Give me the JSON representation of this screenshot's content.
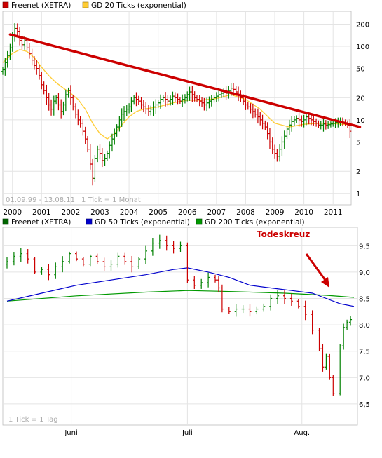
{
  "chart_data": [
    {
      "type": "ohlc",
      "scale": "log",
      "ylim": [
        0.7,
        300
      ],
      "yticks": [
        1,
        2,
        5,
        10,
        20,
        50,
        100,
        200
      ],
      "ytick_labels": [
        "1",
        "2",
        "5",
        "10",
        "20",
        "50",
        "100",
        "200"
      ],
      "xlim": [
        1999.67,
        2011.62
      ],
      "xticks": [
        2000,
        2001,
        2002,
        2003,
        2004,
        2005,
        2006,
        2007,
        2008,
        2009,
        2010,
        2011
      ],
      "xtick_labels": [
        "2000",
        "2001",
        "2002",
        "2003",
        "2004",
        "2005",
        "2006",
        "2007",
        "2008",
        "2009",
        "2010",
        "2011"
      ],
      "legend": [
        {
          "label": "Freenet (XETRA)",
          "color": "#cc0000"
        },
        {
          "label": "GD 20 Ticks (exponential)",
          "color": "#ffcc33"
        }
      ],
      "footer_left": "01.09.99 - 13.08.11",
      "footer_right": "1 Tick = 1 Monat",
      "price_points": [
        [
          1999.67,
          48
        ],
        [
          1999.75,
          60
        ],
        [
          1999.83,
          75
        ],
        [
          1999.92,
          95
        ],
        [
          2000.0,
          140
        ],
        [
          2000.08,
          175
        ],
        [
          2000.17,
          160
        ],
        [
          2000.25,
          120
        ],
        [
          2000.33,
          105
        ],
        [
          2000.42,
          120
        ],
        [
          2000.5,
          95
        ],
        [
          2000.58,
          80
        ],
        [
          2000.67,
          65
        ],
        [
          2000.75,
          55
        ],
        [
          2000.83,
          50
        ],
        [
          2000.92,
          40
        ],
        [
          2001.0,
          30
        ],
        [
          2001.08,
          25
        ],
        [
          2001.17,
          20
        ],
        [
          2001.25,
          16
        ],
        [
          2001.33,
          14
        ],
        [
          2001.42,
          18
        ],
        [
          2001.5,
          20
        ],
        [
          2001.58,
          16
        ],
        [
          2001.67,
          13
        ],
        [
          2001.75,
          16
        ],
        [
          2001.83,
          22
        ],
        [
          2001.92,
          25
        ],
        [
          2002.0,
          20
        ],
        [
          2002.08,
          15
        ],
        [
          2002.17,
          12
        ],
        [
          2002.25,
          10
        ],
        [
          2002.33,
          9
        ],
        [
          2002.42,
          7
        ],
        [
          2002.5,
          5.5
        ],
        [
          2002.58,
          4
        ],
        [
          2002.67,
          2.5
        ],
        [
          2002.75,
          1.6
        ],
        [
          2002.83,
          3
        ],
        [
          2002.92,
          4
        ],
        [
          2003.0,
          3.5
        ],
        [
          2003.08,
          2.8
        ],
        [
          2003.17,
          3
        ],
        [
          2003.25,
          3.5
        ],
        [
          2003.33,
          4.5
        ],
        [
          2003.42,
          5.5
        ],
        [
          2003.5,
          6.5
        ],
        [
          2003.58,
          8
        ],
        [
          2003.67,
          10
        ],
        [
          2003.75,
          12
        ],
        [
          2003.83,
          13
        ],
        [
          2003.92,
          14
        ],
        [
          2004.0,
          15
        ],
        [
          2004.08,
          18
        ],
        [
          2004.17,
          20
        ],
        [
          2004.25,
          19
        ],
        [
          2004.33,
          18
        ],
        [
          2004.42,
          16
        ],
        [
          2004.5,
          15
        ],
        [
          2004.58,
          14
        ],
        [
          2004.67,
          13
        ],
        [
          2004.75,
          14
        ],
        [
          2004.83,
          15
        ],
        [
          2004.92,
          16
        ],
        [
          2005.0,
          17
        ],
        [
          2005.08,
          19
        ],
        [
          2005.17,
          20
        ],
        [
          2005.25,
          19
        ],
        [
          2005.33,
          18
        ],
        [
          2005.42,
          19
        ],
        [
          2005.5,
          21
        ],
        [
          2005.58,
          20
        ],
        [
          2005.67,
          19
        ],
        [
          2005.75,
          18
        ],
        [
          2005.83,
          19
        ],
        [
          2005.92,
          20
        ],
        [
          2006.0,
          22
        ],
        [
          2006.08,
          24
        ],
        [
          2006.17,
          22
        ],
        [
          2006.25,
          20
        ],
        [
          2006.33,
          19
        ],
        [
          2006.42,
          18
        ],
        [
          2006.5,
          17
        ],
        [
          2006.58,
          16
        ],
        [
          2006.67,
          17
        ],
        [
          2006.75,
          18
        ],
        [
          2006.83,
          19
        ],
        [
          2006.92,
          20
        ],
        [
          2007.0,
          21
        ],
        [
          2007.08,
          22
        ],
        [
          2007.17,
          23
        ],
        [
          2007.25,
          24
        ],
        [
          2007.33,
          23
        ],
        [
          2007.42,
          25
        ],
        [
          2007.5,
          27
        ],
        [
          2007.58,
          26
        ],
        [
          2007.67,
          24
        ],
        [
          2007.75,
          22
        ],
        [
          2007.83,
          20
        ],
        [
          2007.92,
          18
        ],
        [
          2008.0,
          16
        ],
        [
          2008.08,
          15
        ],
        [
          2008.17,
          14
        ],
        [
          2008.25,
          13
        ],
        [
          2008.33,
          12
        ],
        [
          2008.42,
          11
        ],
        [
          2008.5,
          10
        ],
        [
          2008.58,
          9
        ],
        [
          2008.67,
          8
        ],
        [
          2008.75,
          6.5
        ],
        [
          2008.83,
          5
        ],
        [
          2008.92,
          4
        ],
        [
          2009.0,
          3.5
        ],
        [
          2009.08,
          3.2
        ],
        [
          2009.17,
          4
        ],
        [
          2009.25,
          5
        ],
        [
          2009.33,
          6
        ],
        [
          2009.42,
          7.5
        ],
        [
          2009.5,
          8.5
        ],
        [
          2009.58,
          9.5
        ],
        [
          2009.67,
          10
        ],
        [
          2009.75,
          10.5
        ],
        [
          2009.83,
          10
        ],
        [
          2009.92,
          9.5
        ],
        [
          2010.0,
          10
        ],
        [
          2010.08,
          11
        ],
        [
          2010.17,
          10.5
        ],
        [
          2010.25,
          10
        ],
        [
          2010.33,
          9.5
        ],
        [
          2010.42,
          9
        ],
        [
          2010.5,
          8.5
        ],
        [
          2010.58,
          8.5
        ],
        [
          2010.67,
          8.8
        ],
        [
          2010.75,
          8.5
        ],
        [
          2010.83,
          8.6
        ],
        [
          2010.92,
          8.8
        ],
        [
          2011.0,
          9
        ],
        [
          2011.08,
          9.2
        ],
        [
          2011.17,
          9.4
        ],
        [
          2011.25,
          9.6
        ],
        [
          2011.33,
          9.3
        ],
        [
          2011.42,
          9.0
        ],
        [
          2011.5,
          8.5
        ],
        [
          2011.58,
          7.0
        ]
      ],
      "gd20_points": [
        [
          1999.67,
          60
        ],
        [
          2000.0,
          80
        ],
        [
          2000.25,
          90
        ],
        [
          2000.5,
          85
        ],
        [
          2000.75,
          70
        ],
        [
          2001.0,
          52
        ],
        [
          2001.25,
          40
        ],
        [
          2001.5,
          32
        ],
        [
          2001.75,
          27
        ],
        [
          2002.0,
          23
        ],
        [
          2002.25,
          19
        ],
        [
          2002.5,
          14
        ],
        [
          2002.75,
          9
        ],
        [
          2003.0,
          6.5
        ],
        [
          2003.25,
          5.5
        ],
        [
          2003.5,
          6.5
        ],
        [
          2003.75,
          8.5
        ],
        [
          2004.0,
          11
        ],
        [
          2004.25,
          13
        ],
        [
          2004.5,
          14
        ],
        [
          2004.75,
          14.5
        ],
        [
          2005.0,
          15
        ],
        [
          2005.5,
          17
        ],
        [
          2006.0,
          18.5
        ],
        [
          2006.5,
          18.5
        ],
        [
          2007.0,
          19.5
        ],
        [
          2007.5,
          22
        ],
        [
          2008.0,
          19
        ],
        [
          2008.5,
          14
        ],
        [
          2009.0,
          9
        ],
        [
          2009.5,
          8
        ],
        [
          2010.0,
          8.7
        ],
        [
          2010.5,
          9.0
        ],
        [
          2011.0,
          8.9
        ],
        [
          2011.58,
          8.6
        ]
      ],
      "trendline": [
        [
          1999.92,
          145
        ],
        [
          2011.92,
          8.0
        ]
      ]
    },
    {
      "type": "ohlc",
      "ylim": [
        6.1,
        9.85
      ],
      "yticks": [
        6.5,
        7.0,
        7.5,
        8.0,
        8.5,
        9.0,
        9.5
      ],
      "ytick_labels": [
        "6,5",
        "7,0",
        "7,5",
        "8,0",
        "8,5",
        "9,0",
        "9,5"
      ],
      "xlim": [
        0,
        100
      ],
      "xticks": [
        18.5,
        52,
        85
      ],
      "xtick_labels": [
        "Juni",
        "Juli",
        "Aug."
      ],
      "legend": [
        {
          "label": "Freenet (XETRA)",
          "color": "#006600"
        },
        {
          "label": "GD 50 Ticks (exponential)",
          "color": "#0000cc"
        },
        {
          "label": "GD 200 Ticks (exponential)",
          "color": "#009900"
        }
      ],
      "annotation": "Todeskreuz",
      "footer_left": "1 Tick = 1 Tag",
      "price_points": [
        [
          0,
          9.2
        ],
        [
          2,
          9.3
        ],
        [
          4,
          9.35
        ],
        [
          6,
          9.25
        ],
        [
          8,
          9.0
        ],
        [
          10,
          9.05
        ],
        [
          12,
          8.95
        ],
        [
          14,
          9.1
        ],
        [
          16,
          9.2
        ],
        [
          18,
          9.35
        ],
        [
          20,
          9.25
        ],
        [
          22,
          9.15
        ],
        [
          24,
          9.3
        ],
        [
          26,
          9.2
        ],
        [
          28,
          9.1
        ],
        [
          30,
          9.15
        ],
        [
          32,
          9.3
        ],
        [
          34,
          9.2
        ],
        [
          36,
          9.1
        ],
        [
          38,
          9.25
        ],
        [
          40,
          9.4
        ],
        [
          42,
          9.55
        ],
        [
          44,
          9.6
        ],
        [
          46,
          9.5
        ],
        [
          48,
          9.45
        ],
        [
          50,
          9.5
        ],
        [
          52,
          8.85
        ],
        [
          54,
          8.75
        ],
        [
          56,
          8.8
        ],
        [
          58,
          8.9
        ],
        [
          60,
          8.85
        ],
        [
          61,
          8.7
        ],
        [
          62,
          8.3
        ],
        [
          64,
          8.25
        ],
        [
          66,
          8.3
        ],
        [
          68,
          8.3
        ],
        [
          70,
          8.25
        ],
        [
          72,
          8.3
        ],
        [
          74,
          8.35
        ],
        [
          76,
          8.5
        ],
        [
          78,
          8.55
        ],
        [
          80,
          8.5
        ],
        [
          82,
          8.45
        ],
        [
          84,
          8.35
        ],
        [
          86,
          8.2
        ],
        [
          88,
          7.9
        ],
        [
          90,
          7.55
        ],
        [
          91,
          7.2
        ],
        [
          92,
          7.4
        ],
        [
          93,
          7.0
        ],
        [
          94,
          6.7
        ],
        [
          96,
          7.6
        ],
        [
          97,
          7.95
        ],
        [
          98,
          8.05
        ],
        [
          99,
          8.1
        ]
      ],
      "gd50_points": [
        [
          0,
          8.45
        ],
        [
          10,
          8.6
        ],
        [
          20,
          8.75
        ],
        [
          30,
          8.85
        ],
        [
          40,
          8.95
        ],
        [
          48,
          9.05
        ],
        [
          52,
          9.08
        ],
        [
          58,
          9.0
        ],
        [
          64,
          8.9
        ],
        [
          70,
          8.75
        ],
        [
          76,
          8.7
        ],
        [
          82,
          8.65
        ],
        [
          88,
          8.6
        ],
        [
          92,
          8.5
        ],
        [
          96,
          8.4
        ],
        [
          100,
          8.35
        ]
      ],
      "gd200_points": [
        [
          0,
          8.45
        ],
        [
          20,
          8.55
        ],
        [
          40,
          8.62
        ],
        [
          52,
          8.65
        ],
        [
          65,
          8.63
        ],
        [
          80,
          8.6
        ],
        [
          92,
          8.56
        ],
        [
          100,
          8.52
        ]
      ]
    }
  ]
}
